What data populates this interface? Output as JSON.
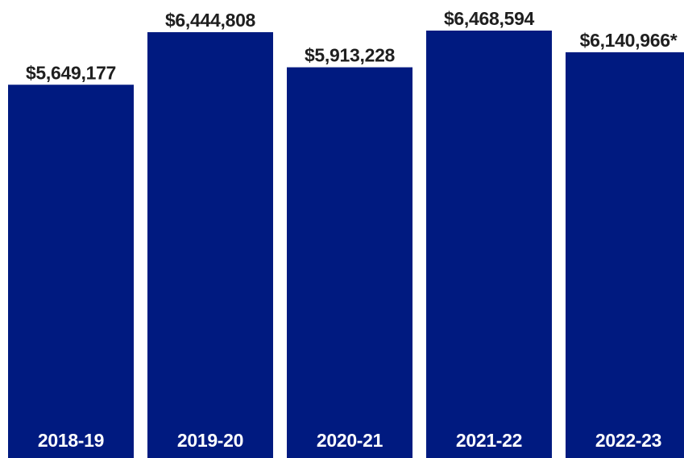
{
  "chart_data": {
    "type": "bar",
    "categories": [
      "2018-19",
      "2019-20",
      "2020-21",
      "2021-22",
      "2022-23"
    ],
    "values": [
      5649177,
      6444808,
      5913228,
      6468594,
      6140966
    ],
    "value_labels": [
      "$5,649,177",
      "$6,444,808",
      "$5,913,228",
      "$6,468,594",
      "$6,140,966*"
    ],
    "title": "",
    "xlabel": "",
    "ylabel": "",
    "ylim": [
      0,
      6468594
    ],
    "grid": false,
    "legend": "none",
    "bar_color": "#001a80",
    "value_label_color": "#1f1f1f",
    "category_label_color": "#ffffff"
  }
}
